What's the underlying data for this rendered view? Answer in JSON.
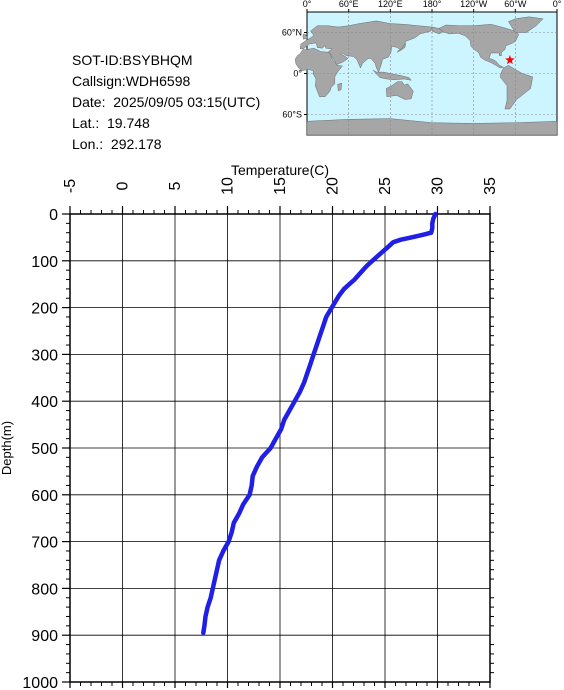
{
  "info": {
    "sot_id": "SOT-ID:BSYBHQM",
    "callsign": "Callsign:WDH6598",
    "date": "Date:  2025/09/05 03:15(UTC)",
    "lat": "Lat.:  19.748",
    "lon": "Lon.:  292.178"
  },
  "map": {
    "lon_labels": [
      "0°",
      "60°E",
      "120°E",
      "180°",
      "120°W",
      "60°W",
      "0°"
    ],
    "lat_labels": [
      "60°N",
      "0°",
      "60°S"
    ],
    "ocean_color": "#ccf5ff",
    "land_color": "#a6a6a6",
    "marker": {
      "lat": 19.748,
      "lon": 292.178,
      "color": "#ff0000",
      "shape": "star"
    }
  },
  "chart_data": {
    "type": "line",
    "title": "",
    "xlabel": "Temperature(C)",
    "ylabel": "Depth(m)",
    "xlim": [
      -5,
      35
    ],
    "ylim": [
      0,
      1000
    ],
    "y_inverted": true,
    "x_ticks": [
      "-5",
      "0",
      "5",
      "10",
      "15",
      "20",
      "25",
      "30",
      "35"
    ],
    "y_ticks": [
      "0",
      "100",
      "200",
      "300",
      "400",
      "500",
      "600",
      "700",
      "800",
      "900",
      "1000"
    ],
    "grid": true,
    "line_color": "#1f1fe6",
    "series": [
      {
        "points": [
          [
            29.8,
            0
          ],
          [
            29.7,
            5
          ],
          [
            29.6,
            10
          ],
          [
            29.5,
            20
          ],
          [
            29.5,
            30
          ],
          [
            29.4,
            40
          ],
          [
            28.5,
            45
          ],
          [
            27.5,
            50
          ],
          [
            26.5,
            55
          ],
          [
            25.8,
            60
          ],
          [
            25.3,
            70
          ],
          [
            24.8,
            80
          ],
          [
            24.3,
            90
          ],
          [
            23.8,
            100
          ],
          [
            23.3,
            110
          ],
          [
            22.9,
            120
          ],
          [
            22.5,
            130
          ],
          [
            22.1,
            140
          ],
          [
            21.6,
            150
          ],
          [
            21.1,
            160
          ],
          [
            20.6,
            175
          ],
          [
            20.2,
            190
          ],
          [
            19.8,
            205
          ],
          [
            19.4,
            220
          ],
          [
            19.1,
            240
          ],
          [
            18.8,
            260
          ],
          [
            18.5,
            280
          ],
          [
            18.2,
            300
          ],
          [
            17.9,
            320
          ],
          [
            17.6,
            340
          ],
          [
            17.3,
            360
          ],
          [
            16.9,
            380
          ],
          [
            16.4,
            400
          ],
          [
            15.9,
            420
          ],
          [
            15.4,
            440
          ],
          [
            15.1,
            460
          ],
          [
            14.6,
            480
          ],
          [
            14.1,
            500
          ],
          [
            13.3,
            520
          ],
          [
            12.8,
            540
          ],
          [
            12.4,
            560
          ],
          [
            12.3,
            580
          ],
          [
            12.1,
            600
          ],
          [
            11.5,
            620
          ],
          [
            11.1,
            640
          ],
          [
            10.6,
            660
          ],
          [
            10.4,
            680
          ],
          [
            10.1,
            700
          ],
          [
            9.6,
            720
          ],
          [
            9.2,
            740
          ],
          [
            9.0,
            760
          ],
          [
            8.8,
            780
          ],
          [
            8.6,
            800
          ],
          [
            8.4,
            820
          ],
          [
            8.1,
            840
          ],
          [
            7.9,
            860
          ],
          [
            7.8,
            880
          ],
          [
            7.7,
            895
          ]
        ]
      }
    ]
  }
}
